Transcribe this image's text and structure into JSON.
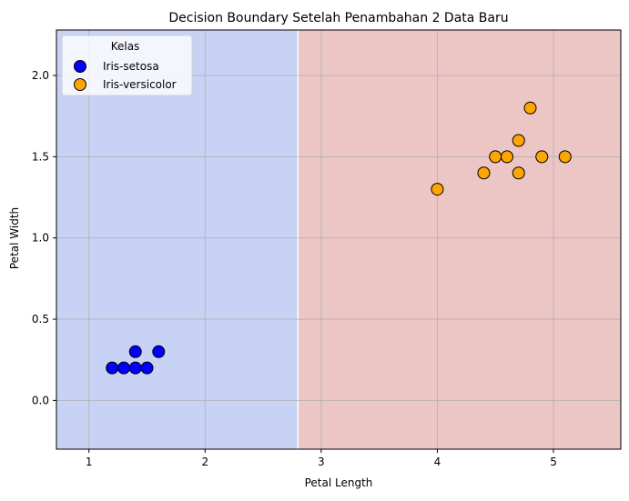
{
  "chart_data": {
    "type": "scatter",
    "title": "Decision Boundary Setelah Penambahan 2 Data Baru",
    "xlabel": "Petal Length",
    "ylabel": "Petal Width",
    "xlim": [
      0.72,
      5.58
    ],
    "ylim": [
      -0.3,
      2.28
    ],
    "xticks": [
      1,
      2,
      3,
      4,
      5
    ],
    "yticks": [
      0.0,
      0.5,
      1.0,
      1.5,
      2.0
    ],
    "xtick_labels": [
      "1",
      "2",
      "3",
      "4",
      "5"
    ],
    "ytick_labels": [
      "0.0",
      "0.5",
      "1.0",
      "1.5",
      "2.0"
    ],
    "grid": true,
    "decision_boundary": {
      "x": 2.8,
      "left_color": "#c8d2f4",
      "right_color": "#ecc5c5",
      "boundary_line_color": "#ffffff"
    },
    "legend": {
      "title": "Kelas",
      "placement": "top-left"
    },
    "series": [
      {
        "name": "Iris-setosa",
        "color": "#0000ff",
        "points": [
          [
            1.2,
            0.2
          ],
          [
            1.3,
            0.2
          ],
          [
            1.4,
            0.2
          ],
          [
            1.5,
            0.2
          ],
          [
            1.4,
            0.3
          ],
          [
            1.6,
            0.3
          ]
        ]
      },
      {
        "name": "Iris-versicolor",
        "color": "#ffa500",
        "points": [
          [
            4.0,
            1.3
          ],
          [
            4.4,
            1.4
          ],
          [
            4.5,
            1.5
          ],
          [
            4.6,
            1.5
          ],
          [
            4.7,
            1.6
          ],
          [
            4.7,
            1.4
          ],
          [
            4.8,
            1.8
          ],
          [
            4.9,
            1.5
          ],
          [
            5.1,
            1.5
          ]
        ]
      }
    ]
  }
}
